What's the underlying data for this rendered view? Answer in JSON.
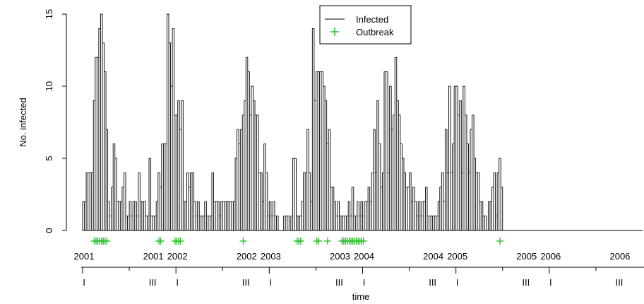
{
  "chart_data": {
    "type": "line",
    "step": true,
    "xlabel": "time",
    "ylabel": "No. infected",
    "ylim": [
      0,
      15
    ],
    "yticks": [
      0,
      5,
      10,
      15
    ],
    "grid": false,
    "legend_position": "top-center",
    "x_unit": "week",
    "x_start": "2001 week 1",
    "x_end": "2006 week 52",
    "legend": [
      {
        "label": "Infected",
        "symbol": "line",
        "color": "#000000"
      },
      {
        "label": "Outbreak",
        "symbol": "+",
        "color": "#22bb22"
      }
    ],
    "year_axis": [
      {
        "label": "2001",
        "quarter": "I"
      },
      {
        "label": "2001",
        "quarter": "III"
      },
      {
        "label": "2002",
        "quarter": "I"
      },
      {
        "label": "2002",
        "quarter": "III"
      },
      {
        "label": "2003",
        "quarter": "I"
      },
      {
        "label": "2003",
        "quarter": "III"
      },
      {
        "label": "2004",
        "quarter": "I"
      },
      {
        "label": "2004",
        "quarter": "III"
      },
      {
        "label": "2005",
        "quarter": "I"
      },
      {
        "label": "2005",
        "quarter": "III"
      },
      {
        "label": "2006",
        "quarter": "I"
      },
      {
        "label": "2006",
        "quarter": "III"
      }
    ],
    "series": [
      {
        "name": "Infected",
        "color": "#000000",
        "values": [
          2,
          2,
          4,
          4,
          4,
          4,
          9,
          12,
          12,
          14,
          15,
          13,
          11,
          7,
          2,
          1,
          3,
          6,
          5,
          2,
          2,
          2,
          3,
          4,
          1,
          1,
          2,
          1,
          2,
          2,
          1,
          4,
          2,
          2,
          2,
          1,
          1,
          5,
          1,
          1,
          1,
          2,
          4,
          3,
          6,
          6,
          6,
          15,
          13,
          10,
          14,
          8,
          8,
          9,
          7,
          9,
          2,
          2,
          4,
          3,
          4,
          4,
          2,
          1,
          2,
          1,
          1,
          1,
          2,
          1,
          1,
          1,
          4,
          2,
          2,
          2,
          1,
          2,
          2,
          2,
          2,
          2,
          2,
          2,
          2,
          5,
          7,
          6,
          7,
          8,
          9,
          12,
          11,
          8,
          10,
          9,
          8,
          8,
          4,
          4,
          2,
          6,
          4,
          1,
          2,
          1,
          2,
          1,
          1,
          0,
          0,
          0,
          1,
          1,
          1,
          0,
          1,
          5,
          5,
          1,
          1,
          1,
          2,
          4,
          4,
          7,
          4,
          2,
          14,
          9,
          11,
          11,
          11,
          11,
          10,
          9,
          6,
          7,
          3,
          3,
          2,
          1,
          2,
          1,
          1,
          1,
          1,
          1,
          2,
          1,
          3,
          1,
          1,
          2,
          1,
          2,
          1,
          2,
          2,
          3,
          2,
          4,
          7,
          4,
          9,
          6,
          3,
          4,
          11,
          11,
          4,
          10,
          7,
          8,
          12,
          9,
          8,
          6,
          5,
          4,
          3,
          3,
          4,
          2,
          3,
          2,
          1,
          2,
          1,
          2,
          2,
          3,
          1,
          1,
          1,
          1,
          1,
          1,
          2,
          3,
          4,
          2,
          7,
          4,
          10,
          4,
          6,
          10,
          10,
          8,
          9,
          4,
          10,
          8,
          6,
          4,
          7,
          8,
          5,
          4,
          4,
          2,
          2,
          1,
          1,
          0,
          2,
          2,
          3,
          4,
          1,
          4,
          5,
          3
        ]
      },
      {
        "name": "Outbreak",
        "color": "#22bb22",
        "weeks": [
          6,
          7,
          8,
          9,
          10,
          11,
          12,
          13,
          42,
          43,
          51,
          52,
          53,
          54,
          89,
          119,
          120,
          121,
          130,
          131,
          136,
          144,
          145,
          146,
          147,
          148,
          149,
          150,
          151,
          152,
          153,
          154,
          155,
          156,
          232
        ]
      }
    ]
  }
}
